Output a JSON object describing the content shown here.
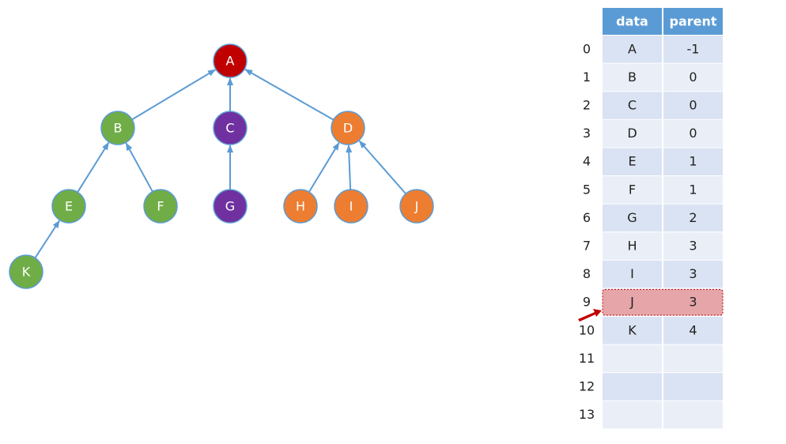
{
  "tree": {
    "nodes": [
      {
        "label": "A",
        "color": "#c00000"
      },
      {
        "label": "B",
        "color": "#70ad47"
      },
      {
        "label": "C",
        "color": "#7030a0"
      },
      {
        "label": "D",
        "color": "#ed7d31"
      },
      {
        "label": "E",
        "color": "#70ad47"
      },
      {
        "label": "F",
        "color": "#70ad47"
      },
      {
        "label": "G",
        "color": "#7030a0"
      },
      {
        "label": "H",
        "color": "#ed7d31"
      },
      {
        "label": "I",
        "color": "#ed7d31"
      },
      {
        "label": "J",
        "color": "#ed7d31"
      },
      {
        "label": "K",
        "color": "#70ad47"
      }
    ]
  },
  "table": {
    "headers": [
      "data",
      "parent"
    ],
    "rows": [
      {
        "index": 0,
        "data": "A",
        "parent": -1
      },
      {
        "index": 1,
        "data": "B",
        "parent": 0
      },
      {
        "index": 2,
        "data": "C",
        "parent": 0
      },
      {
        "index": 3,
        "data": "D",
        "parent": 0
      },
      {
        "index": 4,
        "data": "E",
        "parent": 1
      },
      {
        "index": 5,
        "data": "F",
        "parent": 1
      },
      {
        "index": 6,
        "data": "G",
        "parent": 2
      },
      {
        "index": 7,
        "data": "H",
        "parent": 3
      },
      {
        "index": 8,
        "data": "I",
        "parent": 3
      },
      {
        "index": 9,
        "data": "J",
        "parent": 3
      },
      {
        "index": 10,
        "data": "K",
        "parent": 4
      },
      {
        "index": 11
      },
      {
        "index": 12
      },
      {
        "index": 13
      }
    ],
    "highlight_row": 9
  }
}
